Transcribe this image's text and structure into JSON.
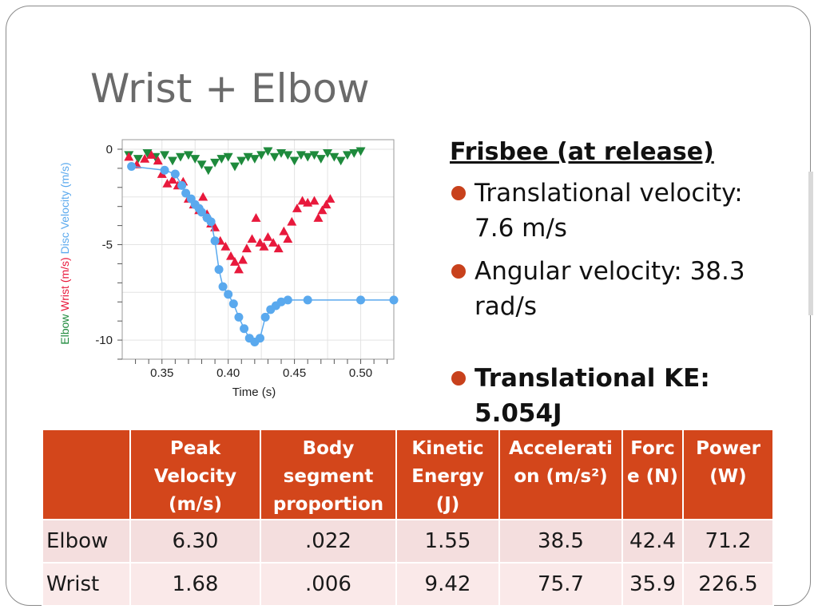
{
  "slide": {
    "title": "Wrist + Elbow"
  },
  "bullets": {
    "heading": "Frisbee (at release)",
    "items": [
      {
        "text": "Translational velocity: 7.6 m/s",
        "bold": false
      },
      {
        "text": "Angular velocity: 38.3 rad/s",
        "bold": false
      },
      {
        "text": "Translational KE: 5.054J",
        "bold": true
      }
    ]
  },
  "table": {
    "headers": [
      "",
      "Peak Velocity (m/s)",
      "Body segment proportion",
      "Kinetic Energy (J)",
      "Accelerati on (m/s²)",
      "Forc e (N)",
      "Power (W)"
    ],
    "rows": [
      [
        "Elbow",
        "6.30",
        ".022",
        "1.55",
        "38.5",
        "42.4",
        "71.2"
      ],
      [
        "Wrist",
        "1.68",
        ".006",
        "9.42",
        "75.7",
        "35.9",
        "226.5"
      ]
    ]
  },
  "colors": {
    "elbow": "#1e8a3c",
    "wrist": "#e8193c",
    "disc": "#5aa9ee",
    "header": "#d3461b",
    "bullet": "#c8411c"
  },
  "chart_data": {
    "type": "scatter",
    "xlabel": "Time (s)",
    "ylabel_parts": [
      "Elbow",
      "Wrist (m/s)",
      "Disc Velocity (m/s)"
    ],
    "xlim": [
      0.32,
      0.525
    ],
    "ylim": [
      -11,
      0.5
    ],
    "xticks": [
      "0.35",
      "0.40",
      "0.45",
      "0.50"
    ],
    "xtick_values": [
      0.35,
      0.4,
      0.45,
      0.5
    ],
    "yticks": [
      "0",
      "-5",
      "-10"
    ],
    "ytick_values": [
      0,
      -5,
      -10
    ],
    "series": [
      {
        "marker": "triangle-down",
        "color": "#1e8a3c",
        "x": [
          0.325,
          0.332,
          0.339,
          0.345,
          0.352,
          0.358,
          0.364,
          0.37,
          0.375,
          0.38,
          0.385,
          0.39,
          0.395,
          0.4,
          0.405,
          0.41,
          0.415,
          0.42,
          0.425,
          0.43,
          0.435,
          0.44,
          0.445,
          0.45,
          0.455,
          0.46,
          0.465,
          0.47,
          0.475,
          0.48,
          0.485,
          0.49,
          0.495,
          0.5
        ],
        "y": [
          -0.3,
          -0.5,
          -0.2,
          -0.4,
          -0.3,
          -0.6,
          -0.4,
          -0.3,
          -0.5,
          -0.8,
          -1.1,
          -0.7,
          -0.5,
          -0.4,
          -0.9,
          -0.6,
          -0.4,
          -0.5,
          -0.3,
          -0.1,
          -0.4,
          -0.2,
          -0.3,
          -0.6,
          -0.3,
          -0.4,
          -0.3,
          -0.5,
          -0.2,
          -0.4,
          -0.6,
          -0.3,
          -0.2,
          -0.1
        ]
      },
      {
        "marker": "triangle-up",
        "color": "#e8193c",
        "x": [
          0.325,
          0.331,
          0.337,
          0.342,
          0.347,
          0.35,
          0.354,
          0.358,
          0.362,
          0.366,
          0.37,
          0.374,
          0.378,
          0.381,
          0.384,
          0.387,
          0.39,
          0.394,
          0.398,
          0.402,
          0.405,
          0.408,
          0.411,
          0.414,
          0.418,
          0.421,
          0.424,
          0.427,
          0.43,
          0.434,
          0.438,
          0.442,
          0.445,
          0.448,
          0.452,
          0.456,
          0.46,
          0.465,
          0.468,
          0.471,
          0.474,
          0.477
        ],
        "y": [
          -0.4,
          -0.8,
          -0.5,
          -0.3,
          -0.6,
          -1.3,
          -1.8,
          -1.6,
          -1.9,
          -1.7,
          -2.6,
          -2.9,
          -3.2,
          -2.5,
          -3.4,
          -3.9,
          -4.1,
          -4.8,
          -5.1,
          -5.6,
          -5.9,
          -6.3,
          -5.8,
          -5.2,
          -4.7,
          -3.6,
          -4.9,
          -5.1,
          -4.6,
          -4.9,
          -5.2,
          -4.3,
          -4.7,
          -3.8,
          -3.1,
          -2.7,
          -2.8,
          -2.7,
          -3.6,
          -3.2,
          -2.9,
          -2.6
        ]
      },
      {
        "marker": "circle",
        "color": "#5aa9ee",
        "connect": true,
        "x": [
          0.327,
          0.352,
          0.36,
          0.365,
          0.368,
          0.372,
          0.375,
          0.378,
          0.38,
          0.384,
          0.387,
          0.39,
          0.393,
          0.396,
          0.4,
          0.404,
          0.408,
          0.412,
          0.416,
          0.42,
          0.424,
          0.428,
          0.432,
          0.436,
          0.44,
          0.445,
          0.46,
          0.5,
          0.525
        ],
        "y": [
          -0.9,
          -1.1,
          -1.3,
          -1.9,
          -2.3,
          -2.6,
          -2.9,
          -3.1,
          -3.3,
          -3.6,
          -3.8,
          -4.8,
          -6.3,
          -7.2,
          -7.6,
          -8.1,
          -8.8,
          -9.4,
          -9.9,
          -10.1,
          -9.9,
          -8.8,
          -8.4,
          -8.2,
          -8.0,
          -7.9,
          -7.9,
          -7.9,
          -7.9
        ]
      }
    ]
  }
}
